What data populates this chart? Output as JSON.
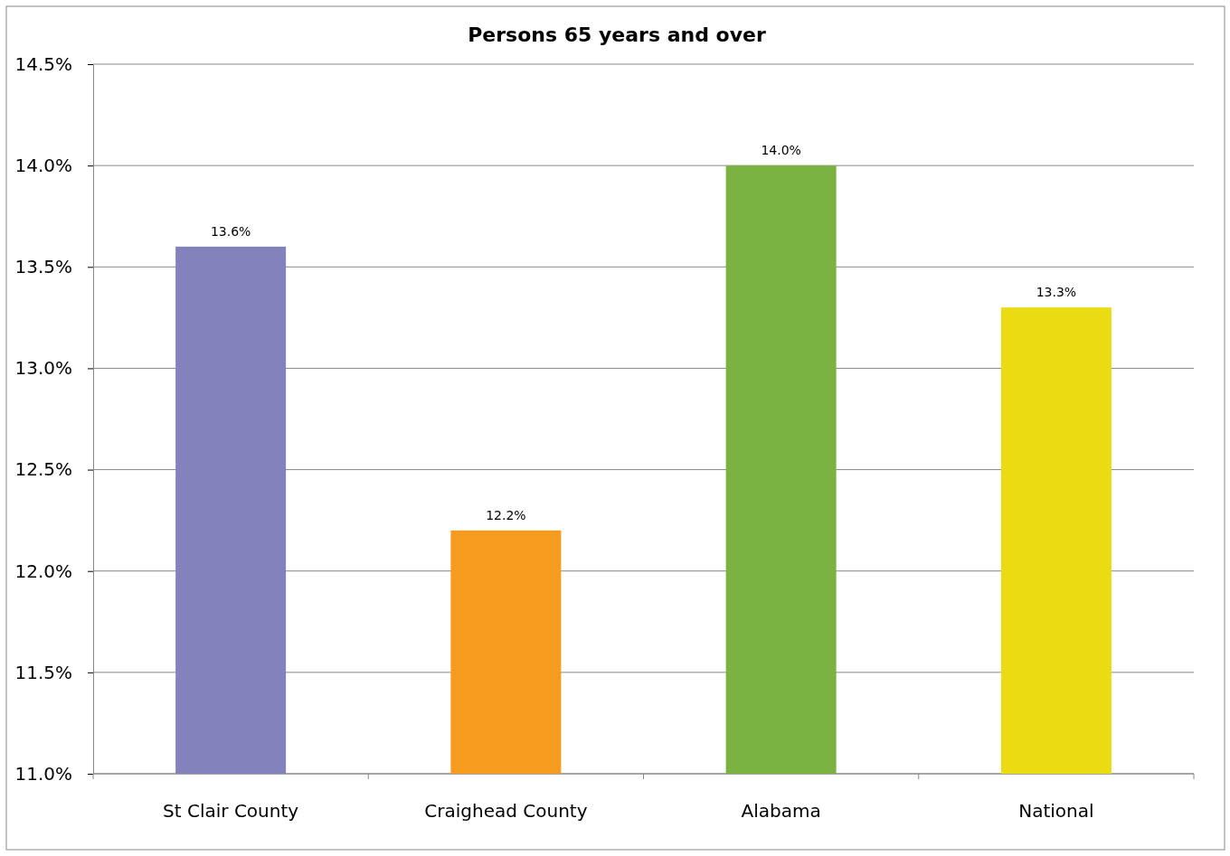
{
  "chart_data": {
    "type": "bar",
    "title": "Persons 65 years and over",
    "categories": [
      "St Clair County",
      "Craighead County",
      "Alabama",
      "National"
    ],
    "values": [
      13.6,
      12.2,
      14.0,
      13.3
    ],
    "colors": [
      "#8482bd",
      "#f79b1e",
      "#7bb342",
      "#ebdb12"
    ],
    "value_labels": [
      "13.6%",
      "12.2%",
      "14.0%",
      "13.3%"
    ],
    "ylim": [
      11.0,
      14.5
    ],
    "yticks": [
      {
        "value": 11.0,
        "label": "11.0%"
      },
      {
        "value": 11.5,
        "label": "11.5%"
      },
      {
        "value": 12.0,
        "label": "12.0%"
      },
      {
        "value": 12.5,
        "label": "12.5%"
      },
      {
        "value": 13.0,
        "label": "13.0%"
      },
      {
        "value": 13.5,
        "label": "13.5%"
      },
      {
        "value": 14.0,
        "label": "14.0%"
      },
      {
        "value": 14.5,
        "label": "14.5%"
      }
    ],
    "grid": "y"
  }
}
